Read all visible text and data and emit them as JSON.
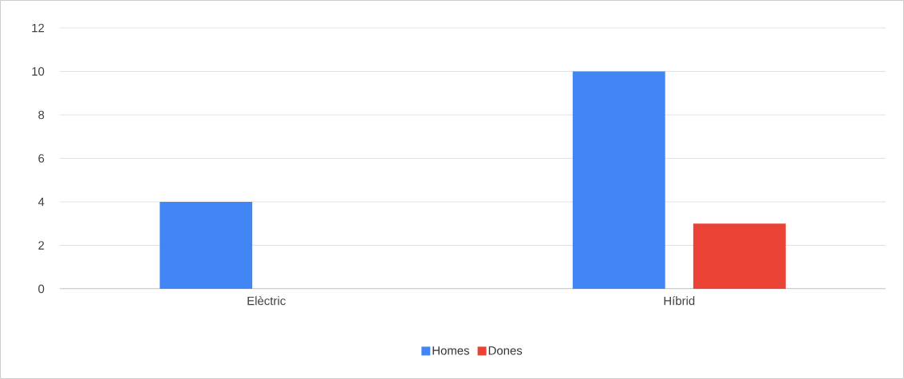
{
  "chart_data": {
    "type": "bar",
    "categories": [
      "Elèctric",
      "Híbrid"
    ],
    "series": [
      {
        "name": "Homes",
        "color": "#4285f4",
        "values": [
          4,
          10
        ]
      },
      {
        "name": "Dones",
        "color": "#ea4335",
        "values": [
          0,
          3
        ]
      }
    ],
    "ylim": [
      0,
      12
    ],
    "yticks": [
      0,
      2,
      4,
      6,
      8,
      10,
      12
    ],
    "grid": "y",
    "legend": "bottom"
  }
}
